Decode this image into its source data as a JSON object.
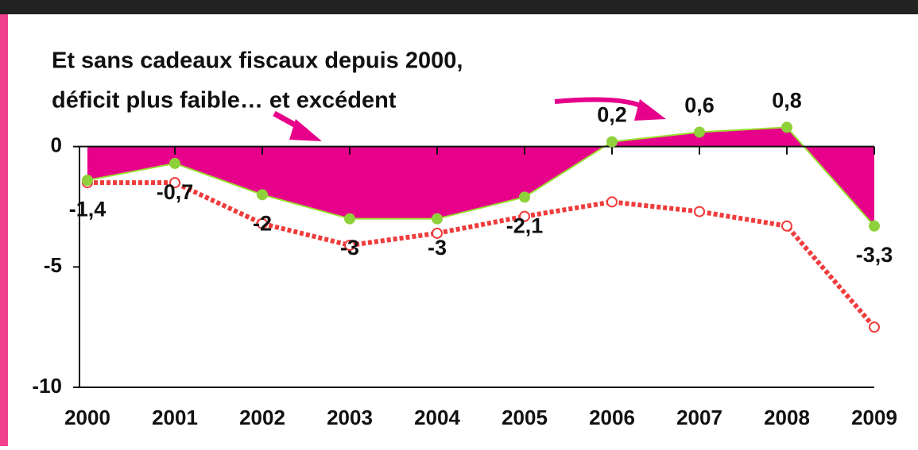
{
  "chart_data": {
    "type": "area-line",
    "annotation": [
      "Et sans cadeaux fiscaux depuis 2000,",
      "déficit plus faible… et excédent"
    ],
    "categories": [
      "2000",
      "2001",
      "2002",
      "2003",
      "2004",
      "2005",
      "2006",
      "2007",
      "2008",
      "2009"
    ],
    "series": [
      {
        "color": "#e6008a",
        "values": [
          -1.4,
          -0.7,
          -2,
          -3,
          -3,
          -2.1,
          0.2,
          0.6,
          0.8,
          -3.3
        ],
        "value_labels": [
          "-1,4",
          "-0,7",
          "-2",
          "-3",
          "-3",
          "-2,1",
          "0,2",
          "0,6",
          "0,8",
          "-3,3"
        ]
      },
      {
        "color": "#f03c3c",
        "values": [
          -1.5,
          -1.5,
          -3.2,
          -4.1,
          -3.6,
          -2.9,
          -2.3,
          -2.7,
          -3.3,
          -7.5
        ]
      }
    ],
    "ylim": [
      -10,
      2
    ],
    "yticks": [
      -10,
      -5,
      0
    ]
  }
}
